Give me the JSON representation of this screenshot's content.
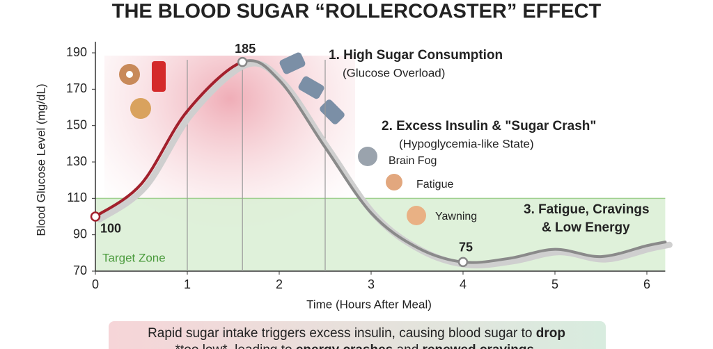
{
  "chart_data": {
    "type": "line",
    "title": "THE BLOOD SUGAR “ROLLERCOASTER” EFFECT",
    "x_label": "Time (Hours After Meal)",
    "y_label": "Blood Glucose Level (mg/dL)",
    "xlim": [
      0,
      6.2
    ],
    "xticks": [
      0,
      1,
      2,
      3,
      4,
      5,
      6
    ],
    "ylim": [
      70,
      190
    ],
    "yticks": [
      70,
      90,
      110,
      130,
      150,
      170,
      190
    ],
    "target_zone": {
      "label": "Target Zone",
      "range": [
        70,
        110
      ],
      "color": "#d9eed3"
    },
    "reference_lines_x": [
      1,
      1.6,
      2.5
    ],
    "series": [
      {
        "color": "#8a8a8a",
        "peak_color": "#a3202c",
        "x": [
          0,
          0.5,
          1,
          1.6,
          2,
          2.5,
          3,
          3.5,
          4,
          4.5,
          5,
          5.5,
          6,
          6.2
        ],
        "values": [
          100,
          118,
          158,
          185,
          175,
          138,
          102,
          83,
          75,
          77,
          82,
          78,
          84,
          86
        ]
      }
    ],
    "markers": {
      "x": [
        0,
        1.6,
        4
      ],
      "values": [
        100,
        185,
        75
      ]
    },
    "annotations": [
      {
        "title": "1. High Sugar Consumption",
        "subtitle": "(Glucose Overload)"
      },
      {
        "title": "2. Excess Insulin & \"Sugar Crash\"",
        "subtitle": "(Hypoglycemia-like State)"
      },
      {
        "title": "3. Fatigue, Cravings",
        "subtitle": "& Low Energy"
      }
    ],
    "symptoms": [
      "Brain Fog",
      "Fatigue",
      "Yawning"
    ],
    "caption": [
      [
        {
          "text": "Rapid sugar intake triggers excess insulin, causing blood sugar to ",
          "bold": false
        },
        {
          "text": "drop",
          "bold": true
        }
      ],
      [
        {
          "text": "*too low*, leading to ",
          "bold": false
        },
        {
          "text": "energy crashes",
          "bold": true
        },
        {
          "text": " and ",
          "bold": false
        },
        {
          "text": "renewed cravings",
          "bold": true
        },
        {
          "text": ".",
          "bold": false
        }
      ]
    ]
  }
}
